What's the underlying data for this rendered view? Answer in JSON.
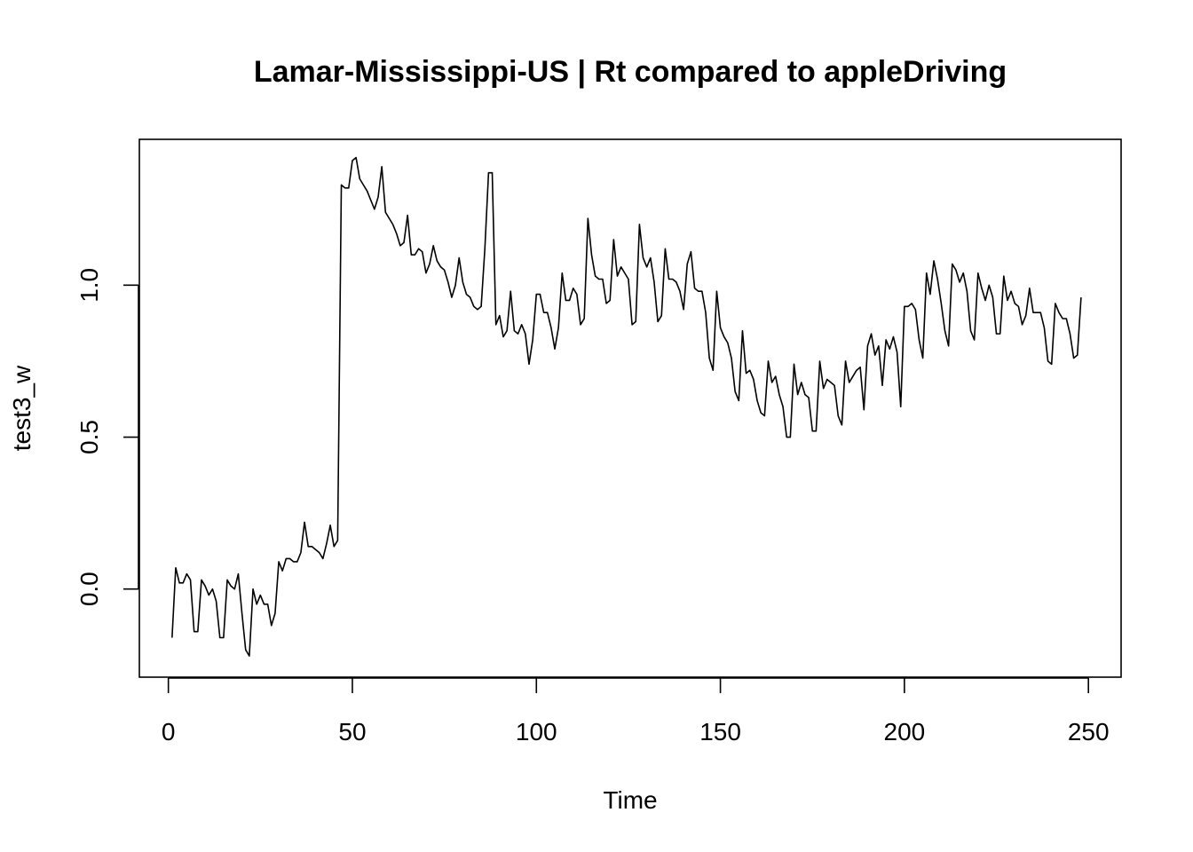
{
  "chart_data": {
    "type": "line",
    "title": "Lamar-Mississippi-US | Rt compared to appleDriving",
    "xlabel": "Time",
    "ylabel": "test3_w",
    "xlim": [
      -7.88,
      258.88
    ],
    "ylim": [
      -0.29,
      1.48
    ],
    "xticks": [
      0,
      50,
      100,
      150,
      200,
      250
    ],
    "yticks": [
      0.0,
      0.5,
      1.0
    ],
    "xtick_labels": [
      "0",
      "50",
      "100",
      "150",
      "200",
      "250"
    ],
    "ytick_labels": [
      "0.0",
      "0.5",
      "1.0"
    ],
    "grid": false,
    "legend": "none",
    "line_color": "#000000",
    "series": [
      {
        "x": [
          1,
          2,
          3,
          4,
          5,
          6,
          7,
          8,
          9,
          10,
          11,
          12,
          13,
          14,
          15,
          16,
          17,
          18,
          19,
          20,
          21,
          22,
          23,
          24,
          25,
          26,
          27,
          28,
          29,
          30,
          31,
          32,
          33,
          34,
          35,
          36,
          37,
          38,
          39,
          40,
          41,
          42,
          43,
          44,
          45,
          46,
          47,
          48,
          49,
          50,
          51,
          52,
          53,
          54,
          55,
          56,
          57,
          58,
          59,
          60,
          61,
          62,
          63,
          64,
          65,
          66,
          67,
          68,
          69,
          70,
          71,
          72,
          73,
          74,
          75,
          76,
          77,
          78,
          79,
          80,
          81,
          82,
          83,
          84,
          85,
          86,
          87,
          88,
          89,
          90,
          91,
          92,
          93,
          94,
          95,
          96,
          97,
          98,
          99,
          100,
          101,
          102,
          103,
          104,
          105,
          106,
          107,
          108,
          109,
          110,
          111,
          112,
          113,
          114,
          115,
          116,
          117,
          118,
          119,
          120,
          121,
          122,
          123,
          124,
          125,
          126,
          127,
          128,
          129,
          130,
          131,
          132,
          133,
          134,
          135,
          136,
          137,
          138,
          139,
          140,
          141,
          142,
          143,
          144,
          145,
          146,
          147,
          148,
          149,
          150,
          151,
          152,
          153,
          154,
          155,
          156,
          157,
          158,
          159,
          160,
          161,
          162,
          163,
          164,
          165,
          166,
          167,
          168,
          169,
          170,
          171,
          172,
          173,
          174,
          175,
          176,
          177,
          178,
          179,
          180,
          181,
          182,
          183,
          184,
          185,
          186,
          187,
          188,
          189,
          190,
          191,
          192,
          193,
          194,
          195,
          196,
          197,
          198,
          199,
          200,
          201,
          202,
          203,
          204,
          205,
          206,
          207,
          208,
          209,
          210,
          211,
          212,
          213,
          214,
          215,
          216,
          217,
          218,
          219,
          220,
          221,
          222,
          223,
          224,
          225,
          226,
          227,
          228,
          229,
          230,
          231,
          232,
          233,
          234,
          235,
          236,
          237,
          238,
          239,
          240,
          241,
          242,
          243,
          244,
          245,
          246,
          247,
          248
        ],
        "y": [
          -0.16,
          0.07,
          0.02,
          0.02,
          0.05,
          0.03,
          -0.14,
          -0.14,
          0.03,
          0.01,
          -0.02,
          0.0,
          -0.04,
          -0.16,
          -0.16,
          0.03,
          0.01,
          0.0,
          0.05,
          -0.08,
          -0.2,
          -0.22,
          0.0,
          -0.05,
          -0.02,
          -0.05,
          -0.05,
          -0.12,
          -0.08,
          0.09,
          0.06,
          0.1,
          0.1,
          0.09,
          0.09,
          0.12,
          0.22,
          0.14,
          0.14,
          0.13,
          0.12,
          0.1,
          0.15,
          0.21,
          0.14,
          0.16,
          1.33,
          1.32,
          1.32,
          1.41,
          1.42,
          1.35,
          1.33,
          1.31,
          1.28,
          1.25,
          1.29,
          1.39,
          1.24,
          1.22,
          1.2,
          1.17,
          1.13,
          1.14,
          1.23,
          1.1,
          1.1,
          1.12,
          1.11,
          1.04,
          1.07,
          1.13,
          1.08,
          1.06,
          1.05,
          1.01,
          0.96,
          1.0,
          1.09,
          1.01,
          0.97,
          0.96,
          0.93,
          0.92,
          0.93,
          1.12,
          1.37,
          1.37,
          0.87,
          0.9,
          0.83,
          0.85,
          0.98,
          0.85,
          0.84,
          0.87,
          0.84,
          0.74,
          0.82,
          0.97,
          0.97,
          0.91,
          0.91,
          0.86,
          0.79,
          0.86,
          1.04,
          0.95,
          0.95,
          0.99,
          0.97,
          0.87,
          0.89,
          1.22,
          1.1,
          1.03,
          1.02,
          1.02,
          0.94,
          0.95,
          1.15,
          1.03,
          1.06,
          1.04,
          1.02,
          0.87,
          0.88,
          1.2,
          1.09,
          1.06,
          1.09,
          1.01,
          0.88,
          0.9,
          1.12,
          1.02,
          1.02,
          1.01,
          0.98,
          0.92,
          1.07,
          1.11,
          0.99,
          0.98,
          0.98,
          0.91,
          0.76,
          0.72,
          0.98,
          0.86,
          0.83,
          0.81,
          0.76,
          0.65,
          0.62,
          0.85,
          0.71,
          0.72,
          0.69,
          0.62,
          0.58,
          0.57,
          0.75,
          0.68,
          0.7,
          0.64,
          0.6,
          0.5,
          0.5,
          0.74,
          0.64,
          0.68,
          0.64,
          0.63,
          0.52,
          0.52,
          0.75,
          0.66,
          0.69,
          0.68,
          0.67,
          0.57,
          0.54,
          0.75,
          0.68,
          0.7,
          0.72,
          0.73,
          0.59,
          0.8,
          0.84,
          0.77,
          0.8,
          0.67,
          0.82,
          0.79,
          0.83,
          0.78,
          0.6,
          0.93,
          0.93,
          0.94,
          0.92,
          0.82,
          0.76,
          1.04,
          0.97,
          1.08,
          1.02,
          0.94,
          0.85,
          0.8,
          1.07,
          1.05,
          1.01,
          1.04,
          0.98,
          0.85,
          0.82,
          1.04,
          0.99,
          0.95,
          1.0,
          0.96,
          0.84,
          0.84,
          1.03,
          0.95,
          0.98,
          0.94,
          0.93,
          0.87,
          0.9,
          0.99,
          0.91,
          0.91,
          0.91,
          0.86,
          0.75,
          0.74,
          0.94,
          0.91,
          0.89,
          0.89,
          0.84,
          0.76,
          0.77,
          0.96
        ]
      }
    ]
  }
}
